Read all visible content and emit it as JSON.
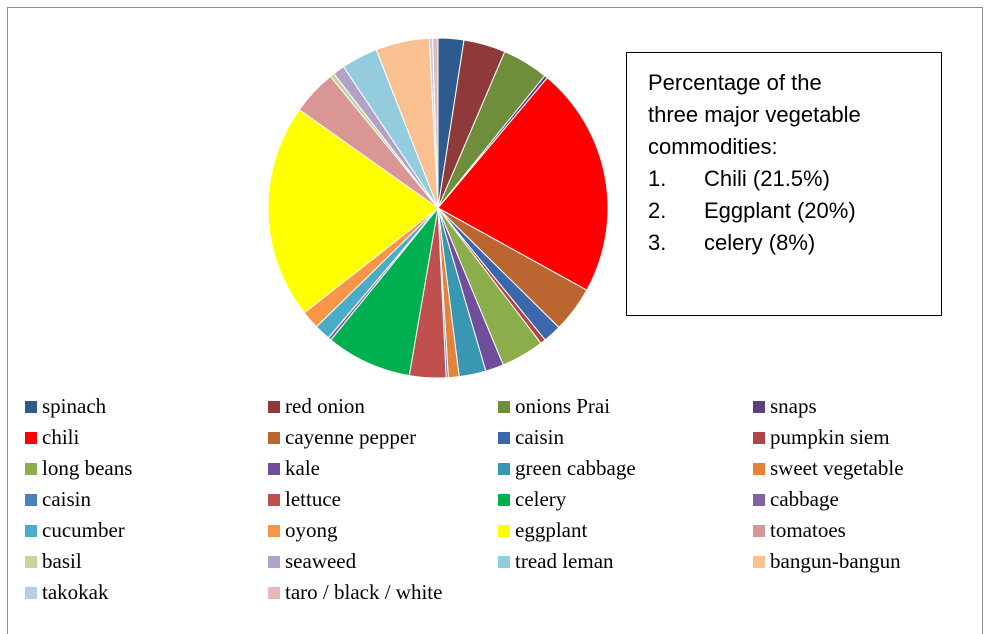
{
  "chart_data": {
    "type": "pie",
    "categories": [
      "spinach",
      "red onion",
      "onions Prai",
      "snaps",
      "chili",
      "cayenne pepper",
      "caisin",
      "pumpkin siem",
      "long beans",
      "kale",
      "green cabbage",
      "sweet vegetable",
      "caisin",
      "lettuce",
      "celery",
      "cabbage",
      "cucumber",
      "oyong",
      "eggplant",
      "tomatoes",
      "basil",
      "seaweed",
      "tread leman",
      "bangun-bangun",
      "takokak",
      "taro / black / white"
    ],
    "values": [
      2.4,
      3.9,
      4.3,
      0.3,
      21.5,
      4.3,
      1.7,
      0.5,
      4.0,
      1.7,
      2.5,
      1.0,
      0.2,
      3.4,
      8.0,
      0.3,
      1.5,
      1.7,
      20.0,
      4.2,
      0.4,
      1.1,
      3.4,
      5.0,
      0.3,
      0.5
    ],
    "colors": [
      "#2E5B8E",
      "#8E3A3A",
      "#6F8E3C",
      "#5C3E83",
      "#FF0000",
      "#BB6630",
      "#3C67AD",
      "#B04446",
      "#8CAD4B",
      "#6F4E9C",
      "#3A97B1",
      "#E5823A",
      "#4F81BD",
      "#C0504D",
      "#00B050",
      "#8064A2",
      "#4BACC6",
      "#F79646",
      "#FFFF00",
      "#D99694",
      "#C3D69B",
      "#B3A2C7",
      "#93CDDD",
      "#FAC090",
      "#B9CDE5",
      "#E6B9B8"
    ],
    "title": "",
    "legend_position": "bottom"
  },
  "annotation": {
    "lines": [
      "Percentage of the",
      "three major vegetable",
      "commodities:"
    ],
    "items": [
      {
        "num": "1.",
        "text": "Chili (21.5%)"
      },
      {
        "num": "2.",
        "text": "Eggplant (20%)"
      },
      {
        "num": "3.",
        "text": "celery (8%)"
      }
    ]
  }
}
